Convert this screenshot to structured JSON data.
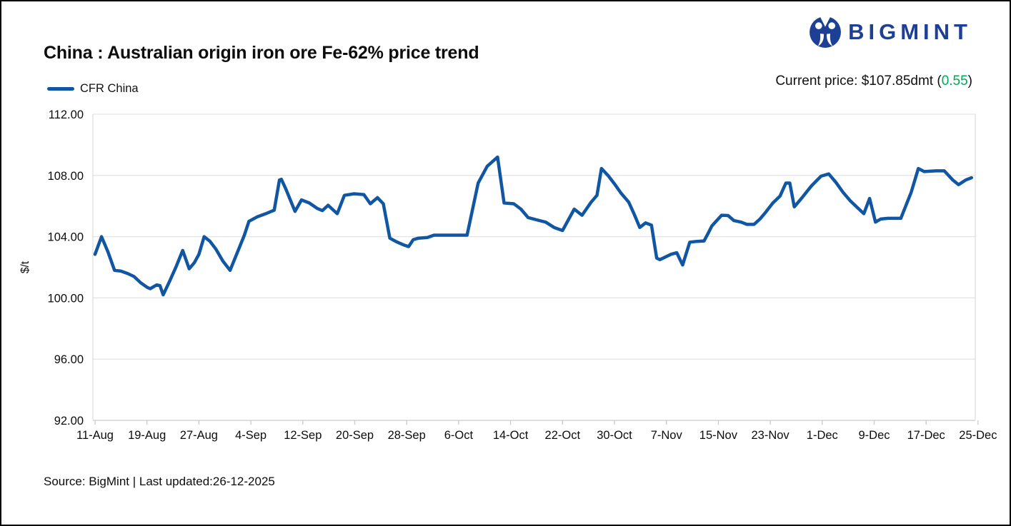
{
  "logo": {
    "text": "BIGMINT",
    "color": "#1d3f94"
  },
  "header": {
    "title": "China : Australian origin iron ore Fe-62% price trend",
    "legend_label": "CFR China"
  },
  "current_price": {
    "prefix": "Current price:",
    "value": "$107.85dmt",
    "open": "(",
    "change": "0.55",
    "close": ")",
    "change_color": "#00a859"
  },
  "footer": {
    "source": "Source: BigMint | Last updated:26-12-2025"
  },
  "chart_data": {
    "type": "line",
    "title": "China : Australian origin iron ore Fe-62% price trend",
    "xlabel": "",
    "ylabel": "$/t",
    "ylim": [
      92,
      112
    ],
    "yticks": [
      "92.00",
      "96.00",
      "100.00",
      "104.00",
      "108.00",
      "112.00"
    ],
    "x_tick_labels": [
      "11-Aug",
      "19-Aug",
      "27-Aug",
      "4-Sep",
      "12-Sep",
      "20-Sep",
      "28-Sep",
      "6-Oct",
      "14-Oct",
      "22-Oct",
      "30-Oct",
      "7-Nov",
      "15-Nov",
      "23-Nov",
      "1-Dec",
      "9-Dec",
      "17-Dec",
      "25-Dec"
    ],
    "x_tick_step_days": 8,
    "x_range_days": [
      0,
      136
    ],
    "grid": "horizontal",
    "legend_position": "top-left",
    "line_color": "#1056a3",
    "gridline_color": "#e4e4e4",
    "axis_color": "#c9c9c9",
    "series": [
      {
        "name": "CFR China",
        "color": "#1056a3",
        "points": [
          [
            0,
            102.85
          ],
          [
            1,
            104.0
          ],
          [
            2,
            103.0
          ],
          [
            3,
            101.8
          ],
          [
            4,
            101.75
          ],
          [
            5,
            101.6
          ],
          [
            6,
            101.4
          ],
          [
            7,
            101.0
          ],
          [
            8,
            100.7
          ],
          [
            8.5,
            100.6
          ],
          [
            9.5,
            100.85
          ],
          [
            10,
            100.8
          ],
          [
            10.5,
            100.2
          ],
          [
            11.5,
            101.1
          ],
          [
            12.5,
            102.05
          ],
          [
            13.5,
            103.1
          ],
          [
            14.5,
            101.9
          ],
          [
            15.3,
            102.3
          ],
          [
            16,
            102.85
          ],
          [
            16.8,
            104.0
          ],
          [
            17.7,
            103.7
          ],
          [
            18.6,
            103.2
          ],
          [
            19.7,
            102.4
          ],
          [
            20.8,
            101.8
          ],
          [
            22,
            103.05
          ],
          [
            23,
            104.1
          ],
          [
            23.7,
            105.0
          ],
          [
            25,
            105.3
          ],
          [
            26.3,
            105.5
          ],
          [
            27.6,
            105.73
          ],
          [
            28.4,
            107.7
          ],
          [
            28.7,
            107.75
          ],
          [
            29.4,
            107.1
          ],
          [
            30.8,
            105.65
          ],
          [
            31.8,
            106.4
          ],
          [
            33,
            106.2
          ],
          [
            34.2,
            105.85
          ],
          [
            35,
            105.7
          ],
          [
            35.9,
            106.05
          ],
          [
            37.3,
            105.5
          ],
          [
            38.4,
            106.7
          ],
          [
            39.9,
            106.8
          ],
          [
            41.4,
            106.75
          ],
          [
            42.4,
            106.15
          ],
          [
            43.5,
            106.55
          ],
          [
            44.4,
            106.15
          ],
          [
            45.4,
            103.9
          ],
          [
            46.5,
            103.65
          ],
          [
            47.6,
            103.45
          ],
          [
            48.3,
            103.35
          ],
          [
            49,
            103.8
          ],
          [
            49.8,
            103.9
          ],
          [
            51.2,
            103.95
          ],
          [
            52.2,
            104.1
          ],
          [
            55.6,
            104.1
          ],
          [
            57.3,
            104.1
          ],
          [
            59,
            107.5
          ],
          [
            60.4,
            108.6
          ],
          [
            62,
            109.2
          ],
          [
            63,
            106.2
          ],
          [
            64.5,
            106.15
          ],
          [
            65.6,
            105.8
          ],
          [
            66.7,
            105.25
          ],
          [
            68,
            105.1
          ],
          [
            69.4,
            104.95
          ],
          [
            70.7,
            104.6
          ],
          [
            72,
            104.4
          ],
          [
            73.8,
            105.8
          ],
          [
            75,
            105.4
          ],
          [
            76.4,
            106.25
          ],
          [
            77.3,
            106.7
          ],
          [
            78,
            108.45
          ],
          [
            79,
            108.0
          ],
          [
            80,
            107.45
          ],
          [
            81,
            106.85
          ],
          [
            82.2,
            106.25
          ],
          [
            83,
            105.5
          ],
          [
            83.9,
            104.6
          ],
          [
            84.8,
            104.9
          ],
          [
            85.7,
            104.75
          ],
          [
            86.5,
            102.6
          ],
          [
            87,
            102.5
          ],
          [
            88.7,
            102.85
          ],
          [
            89.6,
            102.95
          ],
          [
            90.5,
            102.15
          ],
          [
            91.6,
            103.64
          ],
          [
            92.7,
            103.69
          ],
          [
            93.8,
            103.72
          ],
          [
            94.4,
            104.2
          ],
          [
            95,
            104.7
          ],
          [
            96.5,
            105.4
          ],
          [
            97.5,
            105.38
          ],
          [
            98.4,
            105.05
          ],
          [
            99.5,
            104.95
          ],
          [
            100.4,
            104.8
          ],
          [
            101.5,
            104.8
          ],
          [
            102.4,
            105.15
          ],
          [
            103.3,
            105.6
          ],
          [
            104.4,
            106.2
          ],
          [
            105.5,
            106.65
          ],
          [
            106.4,
            107.5
          ],
          [
            107,
            107.5
          ],
          [
            107.7,
            105.95
          ],
          [
            108.8,
            106.5
          ],
          [
            110.3,
            107.3
          ],
          [
            111.8,
            107.95
          ],
          [
            113,
            108.1
          ],
          [
            114.1,
            107.55
          ],
          [
            115.2,
            106.9
          ],
          [
            116.3,
            106.35
          ],
          [
            117.4,
            105.9
          ],
          [
            118.4,
            105.5
          ],
          [
            119.3,
            106.5
          ],
          [
            120.2,
            104.95
          ],
          [
            121,
            105.15
          ],
          [
            122.1,
            105.2
          ],
          [
            124.1,
            105.2
          ],
          [
            125.7,
            106.9
          ],
          [
            126.8,
            108.45
          ],
          [
            127.7,
            108.25
          ],
          [
            129.5,
            108.3
          ],
          [
            130.8,
            108.3
          ],
          [
            132.1,
            107.7
          ],
          [
            133,
            107.4
          ],
          [
            134.1,
            107.7
          ],
          [
            135,
            107.85
          ]
        ]
      }
    ]
  }
}
